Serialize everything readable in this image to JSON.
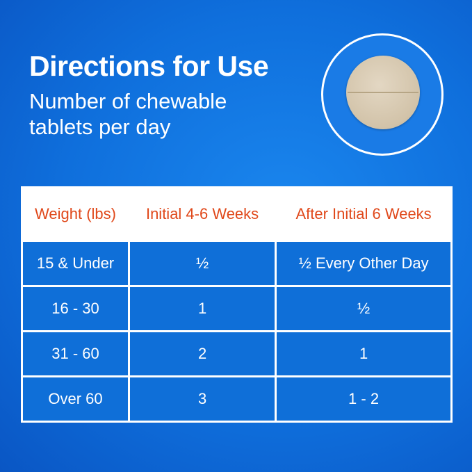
{
  "title": "Directions for Use",
  "subtitle": "Number of chewable tablets per day",
  "image": "chewable-tablet-photo",
  "table": {
    "headers": [
      "Weight (lbs)",
      "Initial 4-6 Weeks",
      "After Initial 6 Weeks"
    ],
    "rows": [
      [
        "15 & Under",
        "½",
        "½ Every Other Day"
      ],
      [
        "16 - 30",
        "1",
        "½"
      ],
      [
        "31 - 60",
        "2",
        "1"
      ],
      [
        "Over 60",
        "3",
        "1 - 2"
      ]
    ]
  },
  "colors": {
    "background": "#0f6fdc",
    "header_text": "#e0481a",
    "cell": "#0f6fd8"
  }
}
